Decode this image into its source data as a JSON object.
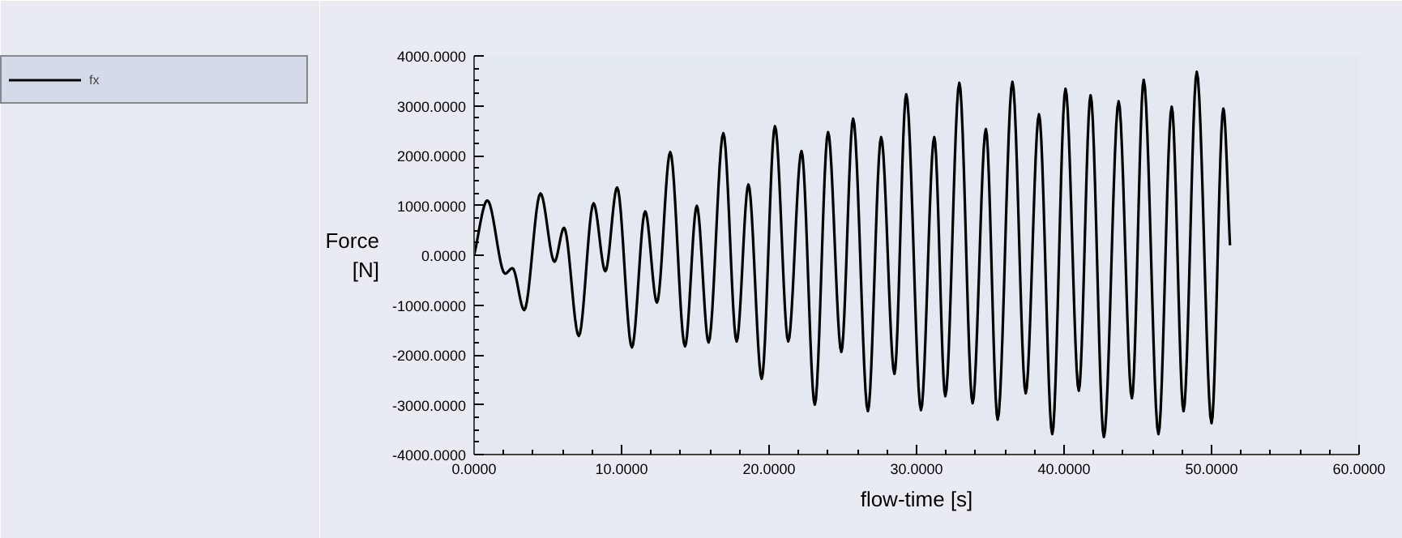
{
  "chart_data": {
    "type": "line",
    "xlabel": "flow-time [s]",
    "ylabel": "Force\n[N]",
    "xlim": [
      0,
      60
    ],
    "ylim": [
      -4000,
      4000
    ],
    "xticks": [
      {
        "value": 0,
        "label": "0.0000"
      },
      {
        "value": 10,
        "label": "10.0000"
      },
      {
        "value": 20,
        "label": "20.0000"
      },
      {
        "value": 30,
        "label": "30.0000"
      },
      {
        "value": 40,
        "label": "40.0000"
      },
      {
        "value": 50,
        "label": "50.0000"
      },
      {
        "value": 60,
        "label": "60.0000"
      }
    ],
    "yticks": [
      {
        "value": -4000,
        "label": "-4000.0000"
      },
      {
        "value": -3000,
        "label": "-3000.0000"
      },
      {
        "value": -2000,
        "label": "-2000.0000"
      },
      {
        "value": -1000,
        "label": "-1000.0000"
      },
      {
        "value": 0,
        "label": "0.0000"
      },
      {
        "value": 1000,
        "label": "1000.0000"
      },
      {
        "value": 2000,
        "label": "2000.0000"
      },
      {
        "value": 3000,
        "label": "3000.0000"
      },
      {
        "value": 4000,
        "label": "4000.0000"
      }
    ],
    "grid": false,
    "legend": "top left",
    "marker": "none",
    "line_style": "solid",
    "series": [
      {
        "name": "fx",
        "color": "#000000",
        "x": [
          0,
          0.9,
          2.1,
          2.6,
          3.4,
          4.5,
          5.45,
          6.1,
          7.1,
          8.1,
          8.9,
          9.7,
          10.7,
          11.6,
          12.4,
          13.3,
          14.3,
          15.1,
          15.9,
          16.9,
          17.8,
          18.6,
          19.5,
          20.4,
          21.3,
          22.2,
          23.1,
          24.0,
          24.9,
          25.7,
          26.7,
          27.6,
          28.5,
          29.3,
          30.3,
          31.2,
          31.95,
          32.9,
          33.8,
          34.7,
          35.5,
          36.5,
          37.4,
          38.3,
          39.2,
          40.1,
          41.0,
          41.8,
          42.7,
          43.7,
          44.6,
          45.4,
          46.4,
          47.3,
          48.1,
          49.0,
          50.0,
          50.8,
          51.25
        ],
        "values": [
          0,
          1100,
          -370,
          -260,
          -1100,
          1240,
          -130,
          550,
          -1620,
          1040,
          -320,
          1360,
          -1850,
          880,
          -950,
          2070,
          -1830,
          990,
          -1750,
          2450,
          -1730,
          1420,
          -2480,
          2590,
          -1730,
          2090,
          -3000,
          2470,
          -1940,
          2740,
          -3130,
          2370,
          -2380,
          3230,
          -3110,
          2370,
          -2830,
          3460,
          -2970,
          2530,
          -3300,
          3480,
          -2770,
          2830,
          -3590,
          3340,
          -2720,
          3210,
          -3650,
          3090,
          -2870,
          3520,
          -3590,
          2980,
          -3130,
          3680,
          -3370,
          2940,
          200
        ]
      }
    ]
  }
}
